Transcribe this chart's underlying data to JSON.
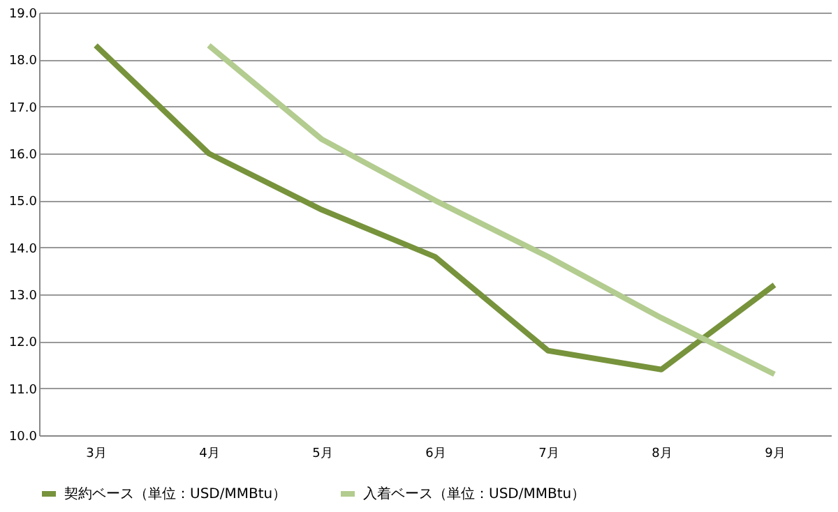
{
  "chart_data": {
    "type": "line",
    "categories": [
      "3月",
      "4月",
      "5月",
      "6月",
      "7月",
      "8月",
      "9月"
    ],
    "series": [
      {
        "name": "契約ベース（単位：USD/MMBtu）",
        "color": "#77933c",
        "values": [
          18.3,
          16.0,
          14.8,
          13.8,
          11.8,
          11.4,
          13.2
        ]
      },
      {
        "name": "入着ベース（単位：USD/MMBtu）",
        "color": "#b3cc8f",
        "values": [
          null,
          18.3,
          16.3,
          15.0,
          13.8,
          12.5,
          11.3
        ]
      }
    ],
    "ylim": [
      10,
      19
    ],
    "yticks": [
      {
        "value": 10,
        "label": "10.0"
      },
      {
        "value": 11,
        "label": "11.0"
      },
      {
        "value": 12,
        "label": "12.0"
      },
      {
        "value": 13,
        "label": "13.0"
      },
      {
        "value": 14,
        "label": "14.0"
      },
      {
        "value": 15,
        "label": "15.0"
      },
      {
        "value": 16,
        "label": "16.0"
      },
      {
        "value": 17,
        "label": "17.0"
      },
      {
        "value": 18,
        "label": "18.0"
      },
      {
        "value": 19,
        "label": "19.0"
      }
    ],
    "grid": "y",
    "legend": "bottom",
    "marker": "none",
    "line_style": "solid"
  }
}
